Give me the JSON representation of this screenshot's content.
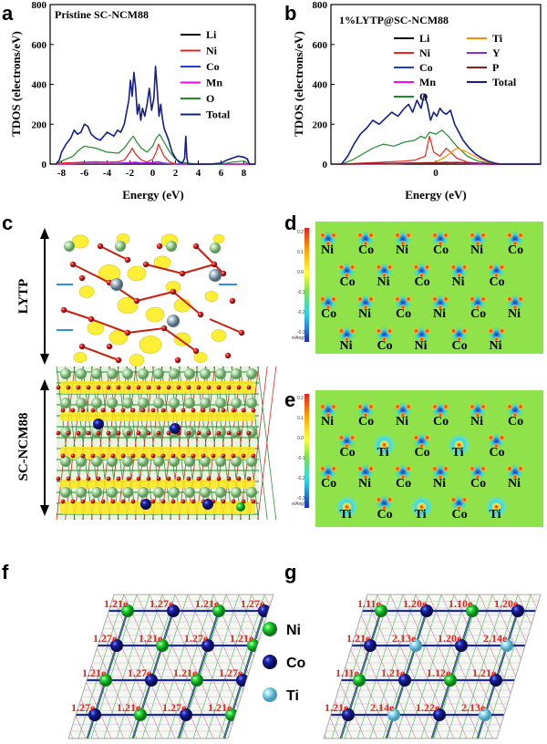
{
  "panels": {
    "a": "a",
    "b": "b",
    "c": "c",
    "d": "d",
    "e": "e",
    "f": "f",
    "g": "g"
  },
  "chart_data": [
    {
      "type": "line",
      "title": "Pristine SC-NCM88",
      "xlabel": "Energy (eV)",
      "ylabel": "TDOS (electrons/eV)",
      "xlim": [
        -9,
        9
      ],
      "ylim": [
        0,
        800
      ],
      "xticks": [
        "-8",
        "-6",
        "-4",
        "-2",
        "0",
        "2",
        "4",
        "6",
        "8"
      ],
      "xtick_values": [
        -8,
        -6,
        -4,
        -2,
        0,
        2,
        4,
        6,
        8
      ],
      "yticks": [
        "0",
        "200",
        "400",
        "600",
        "800"
      ],
      "ytick_values": [
        0,
        200,
        400,
        600,
        800
      ],
      "series": [
        {
          "name": "Li",
          "color": "#000000",
          "x": [
            -9,
            9
          ],
          "values": [
            0,
            0
          ]
        },
        {
          "name": "Ni",
          "color": "#e8241c",
          "x": [
            -8.5,
            -8,
            -7,
            -6,
            -5,
            -4,
            -3,
            -2.5,
            -2,
            -1.8,
            -1.5,
            -1,
            -0.5,
            0,
            0.3,
            0.5,
            1,
            1.5,
            2,
            2.5,
            3,
            4,
            9
          ],
          "values": [
            0,
            5,
            8,
            10,
            12,
            10,
            12,
            20,
            60,
            80,
            50,
            20,
            10,
            25,
            60,
            100,
            40,
            10,
            2,
            0,
            0,
            0,
            0
          ]
        },
        {
          "name": "Co",
          "color": "#1f3ec8",
          "x": [
            -8.5,
            -7,
            -6,
            -5,
            -4,
            -3,
            -2,
            -1.5,
            -1,
            0,
            0.5,
            1,
            2,
            3,
            9
          ],
          "values": [
            0,
            3,
            4,
            5,
            4,
            5,
            8,
            10,
            6,
            8,
            12,
            5,
            1,
            0,
            0
          ]
        },
        {
          "name": "Mn",
          "color": "#ff00ff",
          "x": [
            -8.5,
            -7,
            -6,
            -4,
            -3,
            -2,
            -1,
            0,
            1,
            2,
            9
          ],
          "values": [
            0,
            2,
            3,
            4,
            3,
            5,
            4,
            5,
            3,
            1,
            0
          ]
        },
        {
          "name": "O",
          "color": "#1f8a2a",
          "x": [
            -8.5,
            -8,
            -7,
            -6.5,
            -6,
            -5,
            -4,
            -3,
            -2.5,
            -2,
            -1.7,
            -1.4,
            -1,
            -0.5,
            0,
            0.3,
            0.6,
            1,
            1.5,
            2,
            2.5,
            3,
            4,
            6,
            7,
            8,
            8.5
          ],
          "values": [
            0,
            15,
            40,
            70,
            90,
            80,
            60,
            55,
            80,
            120,
            140,
            110,
            80,
            60,
            90,
            130,
            150,
            110,
            60,
            25,
            10,
            5,
            0,
            0,
            10,
            15,
            0
          ]
        },
        {
          "name": "Total",
          "color": "#141e8c",
          "x": [
            -8.5,
            -8.2,
            -8,
            -7.6,
            -7.2,
            -6.9,
            -6.6,
            -6.3,
            -6,
            -5.7,
            -5.4,
            -5,
            -4.6,
            -4.3,
            -4,
            -3.7,
            -3.4,
            -3.1,
            -2.8,
            -2.5,
            -2.3,
            -2.1,
            -1.95,
            -1.8,
            -1.65,
            -1.5,
            -1.35,
            -1.2,
            -1.05,
            -0.9,
            -0.7,
            -0.5,
            -0.3,
            -0.1,
            0.1,
            0.25,
            0.4,
            0.55,
            0.7,
            0.85,
            1.0,
            1.2,
            1.4,
            1.7,
            2.0,
            2.3,
            2.6,
            2.8,
            2.9,
            3.0,
            3.1,
            3.3,
            4,
            5,
            6,
            6.5,
            7,
            7.5,
            8,
            8.3,
            8.5,
            9
          ],
          "values": [
            0,
            20,
            60,
            100,
            130,
            170,
            150,
            160,
            200,
            190,
            150,
            130,
            120,
            140,
            160,
            150,
            140,
            170,
            160,
            200,
            260,
            320,
            420,
            340,
            460,
            380,
            250,
            300,
            220,
            280,
            240,
            300,
            380,
            270,
            330,
            490,
            370,
            240,
            300,
            230,
            180,
            150,
            120,
            60,
            30,
            10,
            5,
            30,
            140,
            30,
            0,
            0,
            0,
            0,
            5,
            20,
            30,
            40,
            35,
            25,
            0,
            0
          ]
        }
      ]
    },
    {
      "type": "line",
      "title": "1%LYTP@SC-NCM88",
      "xlabel": "Energy (eV)",
      "ylabel": "TDOS (electrons/eV)",
      "xlim": [
        -5,
        5
      ],
      "ylim": [
        0,
        800
      ],
      "xticks": [
        "0"
      ],
      "xtick_values": [
        0
      ],
      "yticks": [
        "0",
        "200",
        "400",
        "600",
        "800"
      ],
      "ytick_values": [
        0,
        200,
        400,
        600,
        800
      ],
      "series": [
        {
          "name": "Li",
          "color": "#000000",
          "x": [
            -5,
            5
          ],
          "values": [
            0,
            0
          ]
        },
        {
          "name": "Ni",
          "color": "#e8241c",
          "x": [
            -4.5,
            -3.5,
            -2.5,
            -1.5,
            -1,
            -0.5,
            -0.3,
            -0.1,
            0.2,
            0.5,
            1,
            1.5,
            2.5,
            3.5,
            5
          ],
          "values": [
            0,
            5,
            10,
            15,
            20,
            40,
            140,
            60,
            40,
            80,
            30,
            10,
            0,
            0,
            0
          ]
        },
        {
          "name": "Co",
          "color": "#1f3ec8",
          "x": [
            -4.5,
            -3,
            -1.5,
            -0.5,
            0,
            0.5,
            1,
            2.5,
            5
          ],
          "values": [
            0,
            3,
            5,
            8,
            6,
            10,
            4,
            0,
            0
          ]
        },
        {
          "name": "Mn",
          "color": "#ff00ff",
          "x": [
            -4.5,
            -3,
            -1,
            0,
            1,
            2.5,
            5
          ],
          "values": [
            0,
            2,
            4,
            5,
            3,
            0,
            0
          ]
        },
        {
          "name": "O",
          "color": "#1f8a2a",
          "x": [
            -4.5,
            -4,
            -3.5,
            -3,
            -2.5,
            -2,
            -1.5,
            -1,
            -0.7,
            -0.5,
            -0.3,
            0,
            0.3,
            0.6,
            1,
            1.5,
            2,
            2.5,
            3,
            5
          ],
          "values": [
            0,
            20,
            50,
            80,
            100,
            90,
            110,
            120,
            140,
            130,
            160,
            150,
            170,
            140,
            90,
            40,
            15,
            5,
            0,
            0
          ]
        },
        {
          "name": "Ti",
          "color": "#ff8c00",
          "x": [
            -4.5,
            -2,
            0,
            0.5,
            1,
            1.5,
            2,
            2.5,
            3,
            5
          ],
          "values": [
            0,
            0,
            10,
            40,
            80,
            60,
            30,
            10,
            0,
            0
          ]
        },
        {
          "name": "Y",
          "color": "#8a2be2",
          "x": [
            -4.5,
            -2,
            0,
            1,
            2,
            3,
            5
          ],
          "values": [
            0,
            2,
            5,
            10,
            5,
            0,
            0
          ]
        },
        {
          "name": "P",
          "color": "#8b1a1a",
          "x": [
            -4.5,
            -3,
            -1,
            0.5,
            1.5,
            3,
            5
          ],
          "values": [
            0,
            3,
            5,
            8,
            5,
            0,
            0
          ]
        },
        {
          "name": "Total",
          "color": "#141e8c",
          "x": [
            -4.5,
            -4.2,
            -3.9,
            -3.6,
            -3.3,
            -3.0,
            -2.7,
            -2.4,
            -2.1,
            -1.8,
            -1.5,
            -1.3,
            -1.1,
            -0.9,
            -0.7,
            -0.55,
            -0.4,
            -0.25,
            -0.1,
            0.05,
            0.2,
            0.35,
            0.5,
            0.7,
            0.9,
            1.1,
            1.3,
            1.6,
            1.9,
            2.2,
            2.5,
            2.8,
            3.1,
            3.5,
            5
          ],
          "values": [
            0,
            40,
            100,
            150,
            180,
            220,
            200,
            230,
            260,
            240,
            280,
            300,
            260,
            320,
            280,
            350,
            300,
            220,
            260,
            240,
            280,
            260,
            250,
            270,
            200,
            160,
            120,
            80,
            50,
            30,
            15,
            5,
            0,
            0,
            0
          ]
        }
      ]
    }
  ],
  "panel_c": {
    "region_top": "LYTP",
    "region_bottom": "SC-NCM88"
  },
  "panel_d": {
    "colorbar_ticks": [
      "0.2",
      "0.1",
      "0.0",
      "-0.1",
      "-0.2",
      "-0.3"
    ],
    "colorbar_unit": "e/Ang^3",
    "rows": [
      [
        "Ni",
        "Co",
        "Ni",
        "Co",
        "Ni",
        "Co"
      ],
      [
        "Co",
        "Ni",
        "Co",
        "Ni",
        "Co"
      ],
      [
        "Co",
        "Ni",
        "Co",
        "Ni",
        "Co",
        "Ni"
      ],
      [
        "Ni",
        "Co",
        "Ni",
        "Co",
        "Ni"
      ]
    ]
  },
  "panel_e": {
    "colorbar_ticks": [
      "0.2",
      "0.1",
      "0.0",
      "-0.1",
      "-0.2",
      "-0.3"
    ],
    "colorbar_unit": "e/Ang^3",
    "rows": [
      [
        "Ni",
        "Co",
        "Ni",
        "Co",
        "Ni",
        "Co"
      ],
      [
        "Co",
        "Ti",
        "Co",
        "Ti",
        "Co"
      ],
      [
        "Co",
        "Ni",
        "Co",
        "Ni",
        "Co",
        "Ni"
      ],
      [
        "Ti",
        "Co",
        "Ti",
        "Co",
        "Ti"
      ]
    ]
  },
  "panel_f": {
    "rows": [
      [
        "1.21e",
        "1.27e",
        "1.21e",
        "1.27e"
      ],
      [
        "1.27e",
        "1.21e",
        "1.27e",
        "1.21e"
      ],
      [
        "1.21e",
        "1.27e",
        "1.21e",
        "1.27e"
      ],
      [
        "1.27e",
        "1.21e",
        "1.27e",
        "1.21e"
      ]
    ]
  },
  "panel_g": {
    "rows": [
      [
        "1.11e",
        "1.20e",
        "1.10e",
        "1.20e"
      ],
      [
        "1.21e",
        "2.13e",
        "1.20e",
        "2.14e"
      ],
      [
        "1.11e",
        "1.21e",
        "1.12e",
        "1.21e"
      ],
      [
        "1.21e",
        "2.14e",
        "1.22e",
        "2.13e"
      ]
    ]
  },
  "legend_atoms": [
    {
      "label": "Ni",
      "color": "#22dd33"
    },
    {
      "label": "Co",
      "color": "#141a8c"
    },
    {
      "label": "Ti",
      "color": "#8fdcf0"
    }
  ]
}
